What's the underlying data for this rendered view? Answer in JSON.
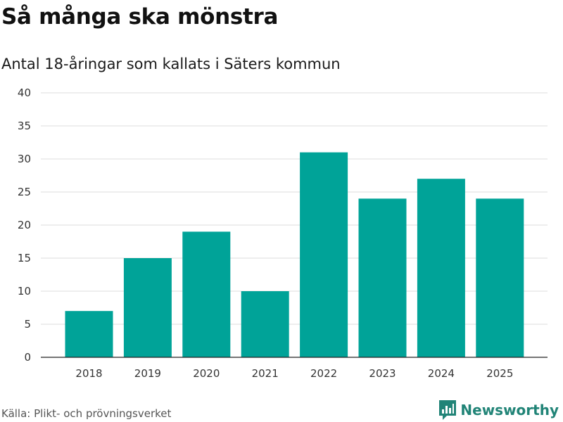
{
  "header": {
    "title": "Så många ska mönstra",
    "subtitle": "Antal 18-åringar som kallats i Säters kommun"
  },
  "footer": {
    "source": "Källa: Plikt- och prövningsverket",
    "brand": "Newsworthy",
    "brand_icon": "newsworthy-logo-icon"
  },
  "colors": {
    "bar": "#00a398",
    "grid": "#dddddd",
    "axis": "#222222",
    "brand": "#218477"
  },
  "chart_data": {
    "type": "bar",
    "title": "Så många ska mönstra",
    "subtitle": "Antal 18-åringar som kallats i Säters kommun",
    "xlabel": "",
    "ylabel": "",
    "categories": [
      "2018",
      "2019",
      "2020",
      "2021",
      "2022",
      "2023",
      "2024",
      "2025"
    ],
    "values": [
      7,
      15,
      19,
      10,
      31,
      24,
      27,
      24
    ],
    "ylim": [
      0,
      40
    ],
    "yticks": [
      "0",
      "5",
      "10",
      "15",
      "20",
      "25",
      "30",
      "35",
      "40"
    ],
    "grid": true,
    "legend": "none"
  }
}
